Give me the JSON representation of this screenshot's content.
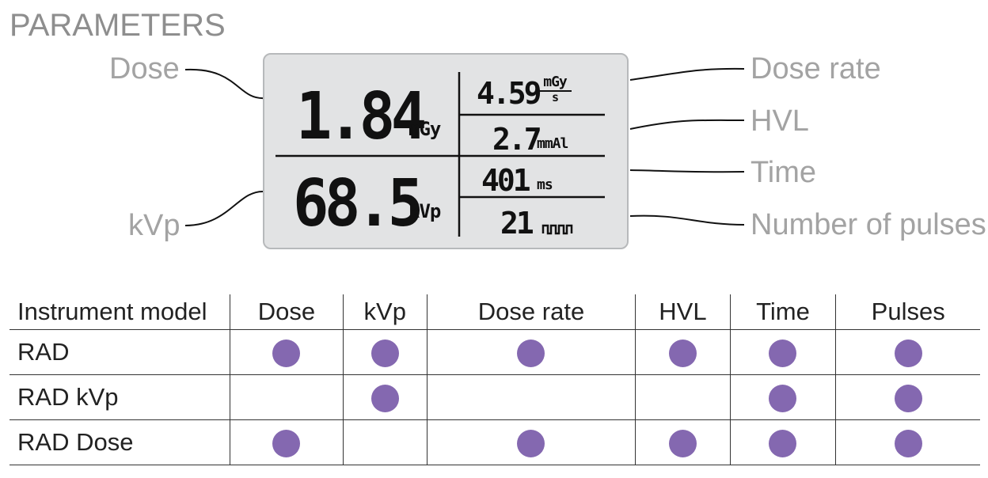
{
  "title": "PARAMETERS",
  "callouts": {
    "dose": "Dose",
    "kvp": "kVp",
    "dose_rate": "Dose rate",
    "hvl": "HVL",
    "time": "Time",
    "pulses": "Number of pulses"
  },
  "display": {
    "dose_value": "1.84",
    "dose_unit": "mGy",
    "kvp_value": "68.5",
    "kvp_unit": "kVp",
    "dose_rate_value": "4.59",
    "dose_rate_unit_num": "mGy",
    "dose_rate_unit_den": "s",
    "hvl_value": "2.7",
    "hvl_unit": "mmAl",
    "time_value": "401",
    "time_unit": "ms",
    "pulses_value": "21"
  },
  "table": {
    "headers": [
      "Instrument model",
      "Dose",
      "kVp",
      "Dose rate",
      "HVL",
      "Time",
      "Pulses"
    ],
    "rows": [
      {
        "model": "RAD",
        "cells": [
          true,
          true,
          true,
          true,
          true,
          true
        ]
      },
      {
        "model": "RAD kVp",
        "cells": [
          false,
          true,
          false,
          false,
          true,
          true
        ]
      },
      {
        "model": "RAD Dose",
        "cells": [
          true,
          false,
          true,
          true,
          true,
          true
        ]
      }
    ],
    "dot_color": "#8468b0"
  }
}
